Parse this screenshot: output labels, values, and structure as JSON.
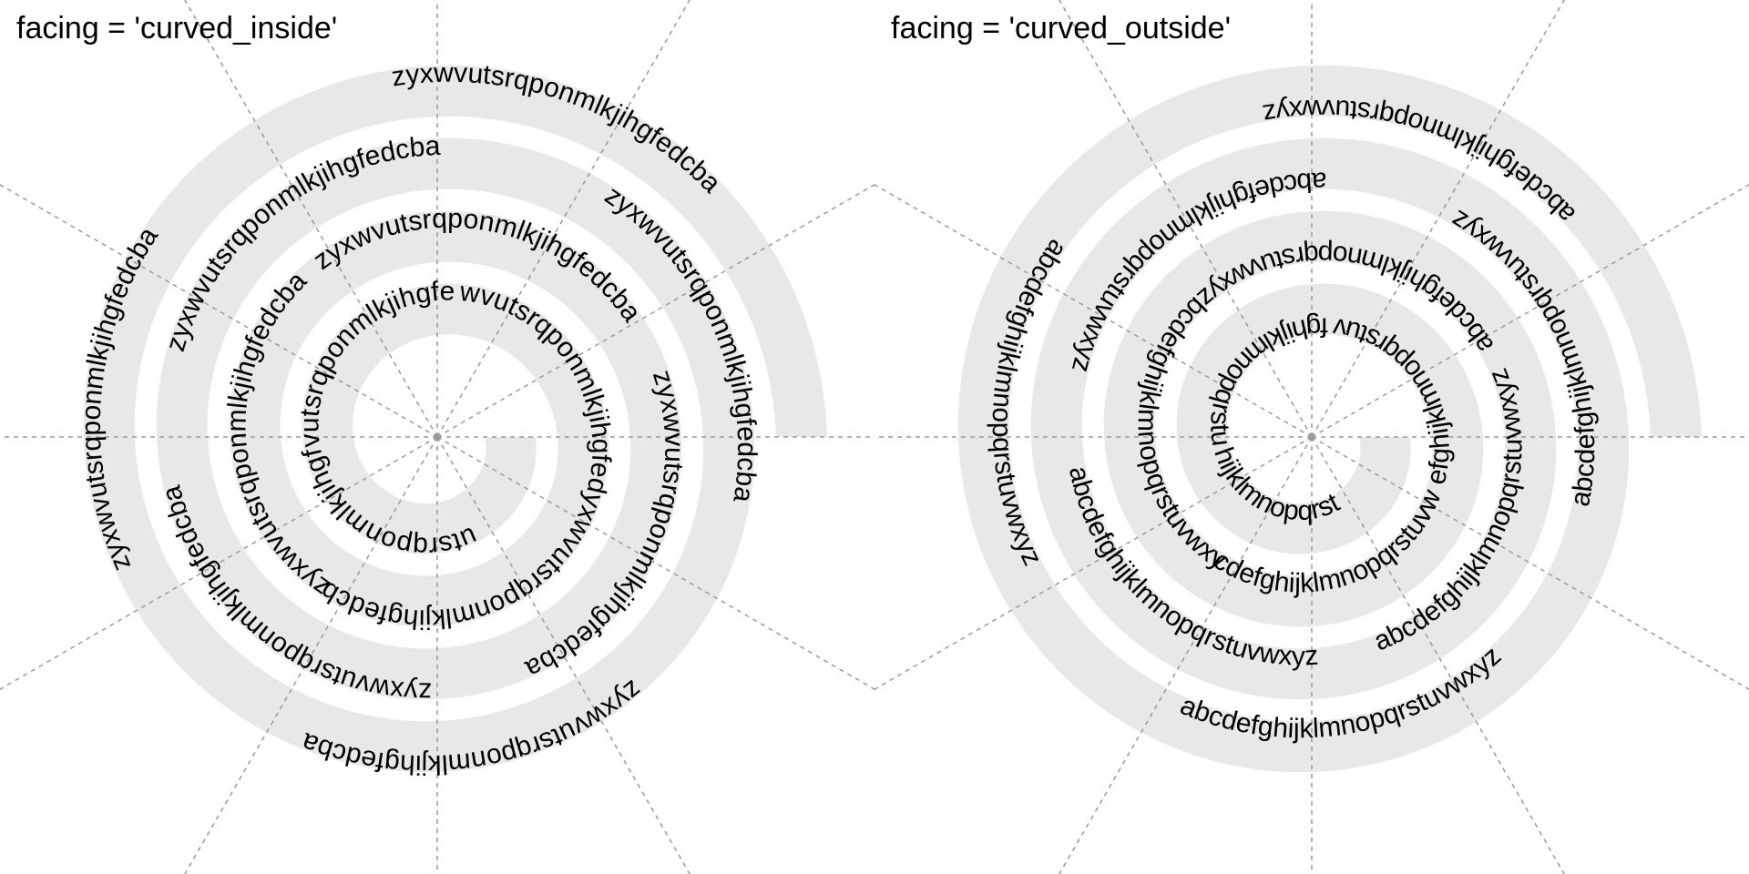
{
  "panels": [
    {
      "title": "facing = 'curved_inside'",
      "facing": "curved_inside",
      "labels": [
        "zyxwvutsrqponmlkjihgfedcba",
        "zyxwvutsrqponmlkjihgfedcba",
        "zyxwvutsrqponmlkjihgfedcba",
        "zyxwvutsrqponmlkjihgfedcba",
        "zyxwvutsrqponmlkjihgfedcba",
        "zyxwvutsrqponmlkjihgfedcba",
        "zyxwvutsrqponmlkjihgfedcba",
        "zyxwvutsrqponmlkjihgfedcba",
        "zyxwvutsrqponmlkjihgfedcba",
        "zyxwvutsrqponmlkjihgfedcba",
        "zyxwvutsrqponmlkjihgfedcba",
        "zyxwvutsrqponmlkjihgfedcba",
        "zyxwvutsrqponmlkjihgfedcba"
      ]
    },
    {
      "title": "facing = 'curved_outside'",
      "facing": "curved_outside",
      "labels": [
        "abcdefghijklmnopqrstuvwxyz",
        "abcdefghijklmnopqrstuvwxyz",
        "abcdefghijklmnopqrstuvwxyz",
        "abcdefghijklmnopqrstuvwxyz",
        "abcdefghijklmnopqrstuvwxyz",
        "abcdefghijklmnopqrstuvwxyz",
        "abcdefghijklmnopqrstuvwxyz",
        "abcdefghijklmnopqrstuvwxyz",
        "abcdefghijklmnopqrstuvwxyz",
        "abcdefghijklmnopqrstuvwxyz",
        "abcdefghijklmnopqrstuvwxyz",
        "abcdefghijklmnopqrstuvwxyz",
        "abcdefghijklmnopqrstuvwxyz"
      ]
    }
  ],
  "colors": {
    "band": "#e8e8e8",
    "grid": "#999999",
    "text": "#000000",
    "background": "#ffffff"
  },
  "grid": {
    "radial_lines": 12,
    "style": "dashed"
  }
}
